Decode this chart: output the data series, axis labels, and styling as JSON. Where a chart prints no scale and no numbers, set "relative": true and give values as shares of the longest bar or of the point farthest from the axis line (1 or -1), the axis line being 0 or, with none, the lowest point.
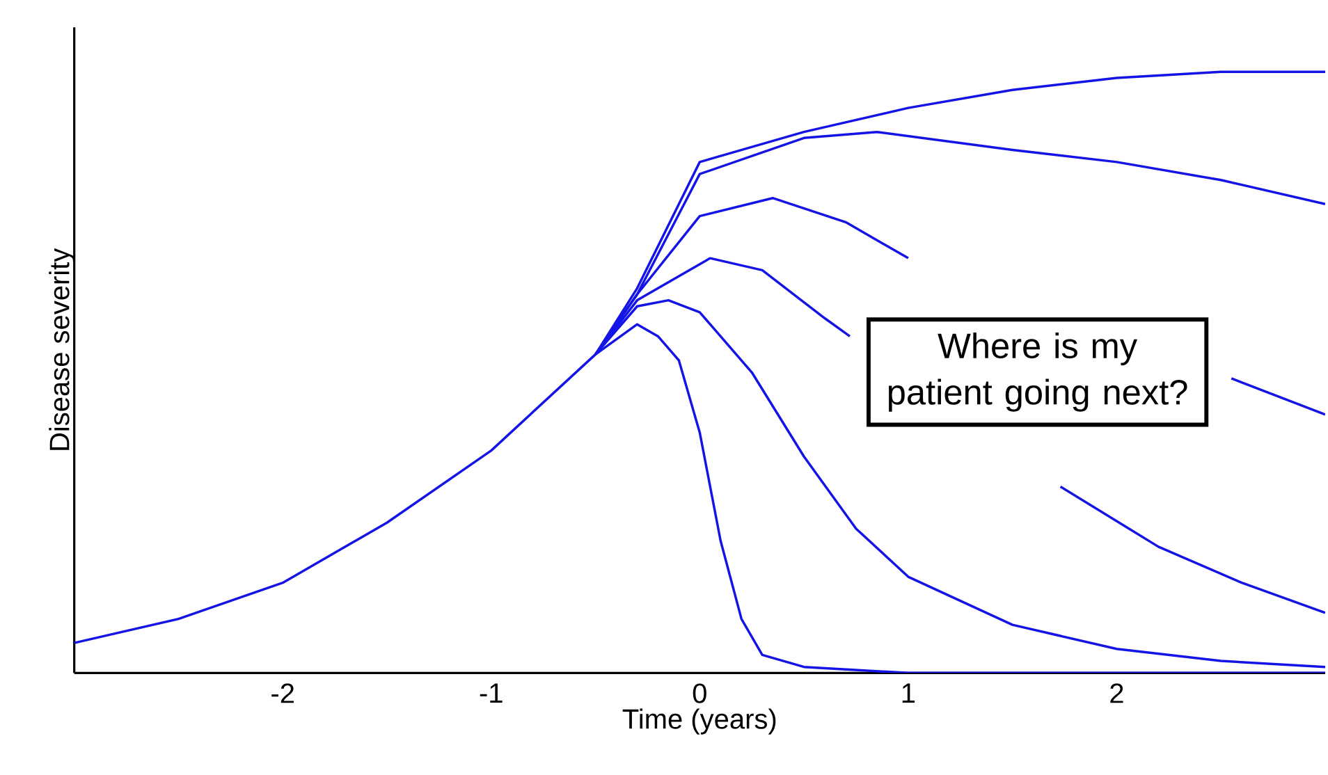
{
  "chart_data": {
    "type": "line",
    "relative": true,
    "xlabel": "Time (years)",
    "ylabel": "Disease severity",
    "xlim": [
      -3,
      3
    ],
    "xticks": [
      -2,
      -1,
      0,
      1,
      2
    ],
    "grid": false,
    "marker": "none",
    "line_style": "solid",
    "annotations": [
      "Where is my patient going next?"
    ],
    "series": [
      {
        "color": "#1414e6",
        "x": [
          -3,
          -2.5,
          -2,
          -1.5,
          -1,
          -0.5,
          -0.3,
          -0.2,
          -0.1,
          0,
          0.1,
          0.2,
          0.3,
          0.5,
          1,
          3
        ],
        "values": [
          0.05,
          0.09,
          0.15,
          0.25,
          0.37,
          0.53,
          0.58,
          0.56,
          0.52,
          0.4,
          0.22,
          0.09,
          0.03,
          0.01,
          0,
          0
        ]
      },
      {
        "color": "#1414e6",
        "x": [
          -0.5,
          -0.3,
          -0.15,
          0,
          0.25,
          0.5,
          0.75,
          1,
          1.5,
          2,
          2.5,
          3
        ],
        "values": [
          0.53,
          0.61,
          0.62,
          0.6,
          0.5,
          0.36,
          0.24,
          0.16,
          0.08,
          0.04,
          0.02,
          0.01
        ]
      },
      {
        "color": "#1414e6",
        "x": [
          -0.5,
          -0.3,
          0.05,
          0.3,
          0.6,
          0.72,
          1.2,
          1.73,
          2.2,
          2.6,
          3
        ],
        "values": [
          0.53,
          0.62,
          0.69,
          0.67,
          0.59,
          0.56,
          null,
          0.31,
          0.21,
          0.15,
          0.1
        ]
      },
      {
        "color": "#1414e6",
        "x": [
          -0.5,
          -0.3,
          0,
          0.35,
          0.7,
          1,
          1.8,
          2.55,
          3
        ],
        "values": [
          0.53,
          0.63,
          0.76,
          0.79,
          0.75,
          0.69,
          null,
          0.49,
          0.43
        ]
      },
      {
        "color": "#1414e6",
        "x": [
          -0.5,
          -0.3,
          0,
          0.5,
          0.85,
          1.5,
          2,
          2.5,
          3
        ],
        "values": [
          0.53,
          0.63,
          0.83,
          0.89,
          0.9,
          0.87,
          0.85,
          0.82,
          0.78
        ]
      },
      {
        "color": "#1414e6",
        "x": [
          -0.5,
          -0.3,
          0,
          0.5,
          1,
          1.5,
          2,
          2.5,
          3
        ],
        "values": [
          0.53,
          0.64,
          0.85,
          0.9,
          0.94,
          0.97,
          0.99,
          1,
          1
        ]
      }
    ]
  }
}
